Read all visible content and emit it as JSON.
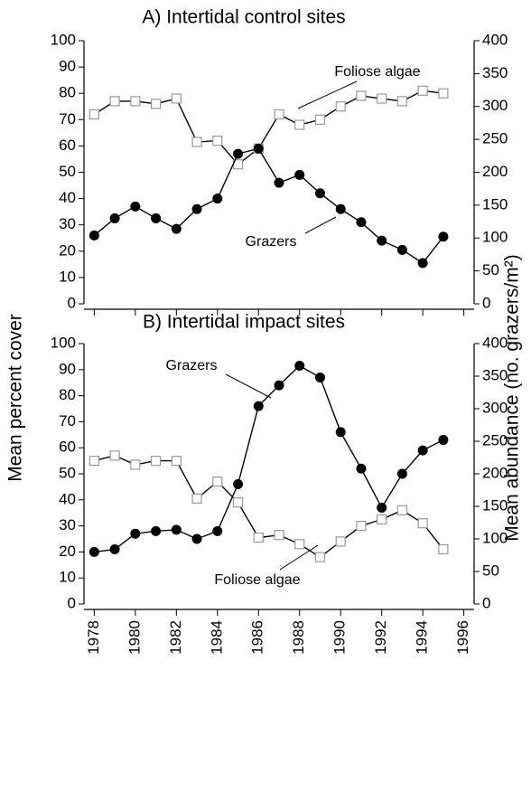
{
  "ylabel": "Mean percent cover",
  "y2label": "Mean abundance (no. grazers/m²)",
  "chart_data": [
    {
      "type": "line",
      "title": "A) Intertidal control sites",
      "x": [
        1978,
        1979,
        1980,
        1981,
        1982,
        1983,
        1984,
        1985,
        1986,
        1987,
        1988,
        1989,
        1990,
        1991,
        1992,
        1993,
        1994,
        1995
      ],
      "series": [
        {
          "name": "Foliose algae",
          "color": "#999999",
          "values": [
            72,
            77,
            77,
            76,
            78,
            61.5,
            62,
            53,
            59,
            72,
            68,
            70,
            75,
            79,
            78,
            77,
            81,
            80
          ]
        },
        {
          "name": "Grazers",
          "color": "#000000",
          "axis": "y2",
          "values": [
            104,
            130,
            148,
            130,
            114,
            144,
            160,
            228,
            236,
            184,
            196,
            168,
            144,
            124,
            96,
            82,
            62,
            102
          ]
        }
      ],
      "annotations": [
        "Foliose algae",
        "Grazers"
      ],
      "xlim": [
        1977.5,
        1996.5
      ],
      "xticks": [
        1978,
        1980,
        1982,
        1984,
        1986,
        1988,
        1990,
        1992,
        1994,
        1996
      ],
      "ylim": [
        0,
        100
      ],
      "yticks": [
        0,
        10,
        20,
        30,
        40,
        50,
        60,
        70,
        80,
        90,
        100
      ],
      "y2lim": [
        0,
        400
      ],
      "y2ticks": [
        0,
        50,
        100,
        150,
        200,
        250,
        300,
        350,
        400
      ]
    },
    {
      "type": "line",
      "title": "B) Intertidal impact sites",
      "x": [
        1978,
        1979,
        1980,
        1981,
        1982,
        1983,
        1984,
        1985,
        1986,
        1987,
        1988,
        1989,
        1990,
        1991,
        1992,
        1993,
        1994,
        1995
      ],
      "series": [
        {
          "name": "Foliose algae",
          "color": "#999999",
          "values": [
            55,
            57,
            53.5,
            55,
            55,
            40.5,
            47,
            39,
            25.5,
            26.5,
            23,
            18,
            24,
            30,
            32.5,
            36,
            31,
            21
          ]
        },
        {
          "name": "Grazers",
          "color": "#000000",
          "axis": "y2",
          "values": [
            80,
            84,
            108,
            112,
            114,
            100,
            112,
            184,
            304,
            336,
            366,
            348,
            264,
            208,
            148,
            200,
            236,
            252
          ]
        }
      ],
      "annotations": [
        "Grazers",
        "Foliose algae"
      ],
      "xlim": [
        1977.5,
        1996.5
      ],
      "xticks": [
        1978,
        1980,
        1982,
        1984,
        1986,
        1988,
        1990,
        1992,
        1994,
        1996
      ],
      "ylim": [
        0,
        100
      ],
      "yticks": [
        0,
        10,
        20,
        30,
        40,
        50,
        60,
        70,
        80,
        90,
        100
      ],
      "y2lim": [
        0,
        400
      ],
      "y2ticks": [
        0,
        50,
        100,
        150,
        200,
        250,
        300,
        350,
        400
      ],
      "xtick_labels": true
    }
  ]
}
